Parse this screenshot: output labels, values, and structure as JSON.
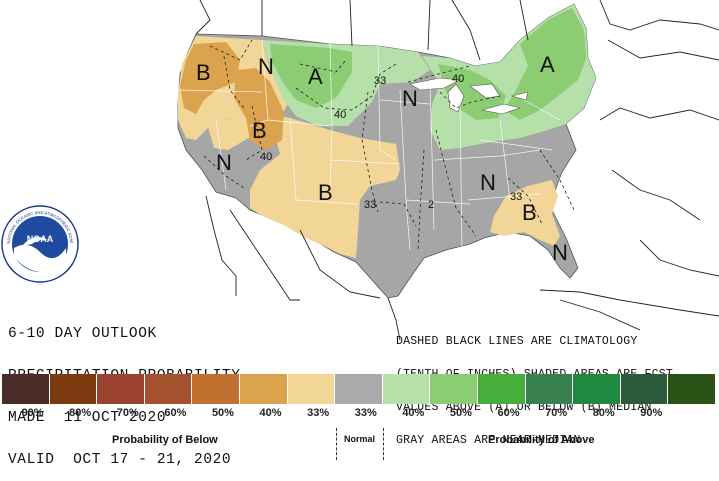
{
  "title": {
    "line1": "6-10 DAY OUTLOOK",
    "line2": "PRECIPITATION PROBABILITY",
    "line3": "MADE  11 OCT 2020",
    "line4": "VALID  OCT 17 - 21, 2020"
  },
  "note": {
    "line1": "DASHED BLACK LINES ARE CLIMATOLOGY",
    "line2": "(TENTH OF INCHES) SHADED AREAS ARE FCST",
    "line3": "VALUES ABOVE (A) OR BELOW (B) MEDIAN",
    "line4": "GRAY AREAS ARE NEAR-MEDIAN"
  },
  "logo": {
    "center_text": "NOAA",
    "ring_text": "NATIONAL OCEANIC AND ATMOSPHERIC ADMINISTRATION"
  },
  "map_labels": {
    "b_pacific_nw": "B",
    "n_montana": "N",
    "a_north_plains": "A",
    "n_upper_midwest": "N",
    "a_northeast": "A",
    "b_idaho": "B",
    "n_great_basin": "N",
    "b_southwest": "B",
    "n_southeast": "N",
    "b_carolinas": "B",
    "n_florida": "N",
    "c33_dakota": "33",
    "c40_dakota": "40",
    "c40_idaho": "40",
    "c40_great_lakes": "40",
    "c33_texas": "33",
    "c2_mississippi": "2",
    "c33_carolinas": "33"
  },
  "legend": {
    "colors": [
      "#4a2c29",
      "#7b3a0f",
      "#9b4330",
      "#a4522e",
      "#c0712f",
      "#dca34f",
      "#f1d698",
      "#aaaaaa",
      "#b5e0aa",
      "#8ccc72",
      "#47ae3c",
      "#388050",
      "#1f8a3f",
      "#2c5a3a",
      "#2b5318"
    ],
    "ticks": [
      "90%",
      "80%",
      "70%",
      "60%",
      "50%",
      "40%",
      "33%",
      "33%",
      "40%",
      "50%",
      "60%",
      "70%",
      "80%",
      "90%",
      ""
    ],
    "below_label": "Probability of Below",
    "normal_label": "Normal",
    "above_label": "Probability of Above"
  },
  "colors": {
    "gray_near_median": "#a6a6a6",
    "tan_33_below": "#f1d698",
    "tan_40_below": "#dca34f",
    "light_green_33_above": "#b5e0aa",
    "green_40_above": "#8ccc72"
  }
}
